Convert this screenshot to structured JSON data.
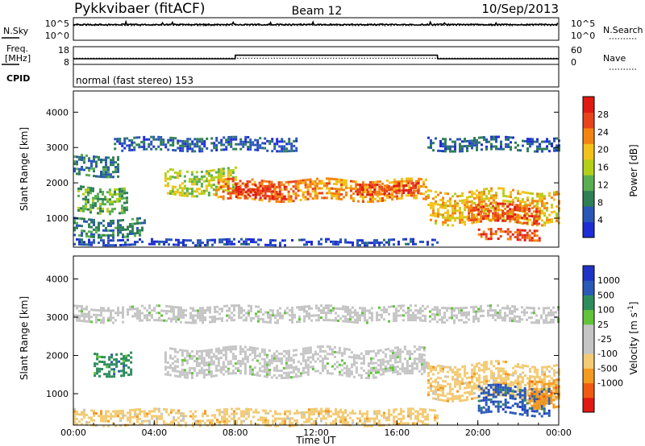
{
  "header": {
    "station": "Pykkvibaer (fitACF)",
    "beam": "Beam 12",
    "date": "10/Sep/2013"
  },
  "noise_panel": {
    "left_label": "N.Sky",
    "left_ticks": [
      "10^5",
      "10^0"
    ],
    "right_label": "N.Search",
    "right_ticks": [
      "10^5",
      "10^0"
    ]
  },
  "freq_panel": {
    "left_label_1": "Freq.",
    "left_label_2": "[MHz]",
    "left_ticks": [
      "18",
      "8"
    ],
    "right_label": "Nave",
    "right_ticks": [
      "60",
      "0"
    ]
  },
  "cpid": {
    "label": "CPID",
    "mode": "normal (fast stereo) 153"
  },
  "colors": {
    "power_scale": [
      "#1e2dd6",
      "#2a56b8",
      "#2f7f55",
      "#5aae52",
      "#b4cf1a",
      "#f2c21a",
      "#f48412",
      "#e8431b",
      "#e01a12"
    ],
    "velocity_scale": [
      "#e01a12",
      "#f05a12",
      "#f49a20",
      "#f3cb74",
      "#c5c5c5",
      "#c5c5c5",
      "#61c43a",
      "#2e8c5c",
      "#2a59b6",
      "#1f33c7"
    ]
  },
  "chart_data": [
    {
      "type": "heatmap",
      "name": "power",
      "xlabel": "",
      "ylabel": "Slant Range [km]",
      "xlim": [
        0,
        24
      ],
      "ylim": [
        180,
        4600
      ],
      "y_ticks": [
        "1000",
        "2000",
        "3000",
        "4000"
      ],
      "colorbar_label": "Power [dB]",
      "colorbar_ticks": [
        "4",
        "8",
        "12",
        "16",
        "20",
        "24",
        "28"
      ],
      "colorbar_range": [
        0,
        32
      ],
      "bands": [
        {
          "t": [
            0,
            3.5
          ],
          "r": [
            500,
            1000
          ],
          "value": 8
        },
        {
          "t": [
            0.2,
            2.6
          ],
          "r": [
            1200,
            1900
          ],
          "value": 12
        },
        {
          "t": [
            0,
            2.2
          ],
          "r": [
            2200,
            2800
          ],
          "value": 8
        },
        {
          "t": [
            4.5,
            8
          ],
          "r": [
            1700,
            2400
          ],
          "value": 16
        },
        {
          "t": [
            7,
            12
          ],
          "r": [
            1500,
            2100
          ],
          "value": 24
        },
        {
          "t": [
            8,
            10.5
          ],
          "r": [
            1600,
            1950
          ],
          "value": 28
        },
        {
          "t": [
            12,
            17.5
          ],
          "r": [
            1500,
            2100
          ],
          "value": 22
        },
        {
          "t": [
            14,
            17
          ],
          "r": [
            1700,
            2000
          ],
          "value": 28
        },
        {
          "t": [
            17.5,
            24
          ],
          "r": [
            900,
            1800
          ],
          "value": 20
        },
        {
          "t": [
            19.5,
            23
          ],
          "r": [
            900,
            1400
          ],
          "value": 26
        },
        {
          "t": [
            20,
            23
          ],
          "r": [
            400,
            700
          ],
          "value": 26
        },
        {
          "t": [
            2,
            11
          ],
          "r": [
            2950,
            3300
          ],
          "value": 6
        },
        {
          "t": [
            17.5,
            24
          ],
          "r": [
            2900,
            3300
          ],
          "value": 6
        },
        {
          "t": [
            0,
            18
          ],
          "r": [
            220,
            420
          ],
          "value": 4
        }
      ]
    },
    {
      "type": "heatmap",
      "name": "velocity",
      "xlabel": "Time UT",
      "ylabel": "Slant Range [km]",
      "xlim": [
        0,
        24
      ],
      "ylim": [
        180,
        4600
      ],
      "x_ticks": [
        "00:00",
        "04:00",
        "08:00",
        "12:00",
        "16:00",
        "20:00",
        "00:00"
      ],
      "y_ticks": [
        "1000",
        "2000",
        "3000",
        "4000"
      ],
      "colorbar_label": "Velocity [m s^-1]",
      "colorbar_ticks": [
        "1000",
        "500",
        "100",
        "25",
        "-25",
        "-100",
        "-500",
        "-1000"
      ],
      "bands": [
        {
          "t": [
            1,
            2.8
          ],
          "r": [
            1500,
            2100
          ],
          "value": 100
        },
        {
          "t": [
            4.5,
            17.5
          ],
          "r": [
            1500,
            2200
          ],
          "value": 0
        },
        {
          "t": [
            0,
            24
          ],
          "r": [
            2900,
            3300
          ],
          "value": 0
        },
        {
          "t": [
            17.5,
            24
          ],
          "r": [
            900,
            1800
          ],
          "value": -100
        },
        {
          "t": [
            20,
            23.5
          ],
          "r": [
            500,
            1200
          ],
          "value": 500
        },
        {
          "t": [
            22.5,
            24
          ],
          "r": [
            700,
            1400
          ],
          "value": -500
        },
        {
          "t": [
            0,
            18
          ],
          "r": [
            220,
            600
          ],
          "value": -100
        }
      ]
    },
    {
      "type": "line",
      "name": "noise",
      "series": [
        {
          "name": "N.Sky",
          "x": [
            0,
            24
          ],
          "y": [
            3000,
            3000
          ]
        },
        {
          "name": "N.Search",
          "x": [
            0,
            24
          ],
          "y": [
            2000,
            2000
          ]
        }
      ]
    },
    {
      "type": "line",
      "name": "frequency",
      "series": [
        {
          "name": "Freq.",
          "x": [
            0,
            0.01,
            8.0,
            8.01,
            18.0,
            18.01,
            24
          ],
          "y": [
            11.2,
            11.2,
            11.2,
            13.2,
            13.2,
            11.2,
            11.2
          ]
        },
        {
          "name": "Nave",
          "x": [
            0,
            24
          ],
          "y": [
            21,
            21
          ]
        }
      ]
    }
  ]
}
